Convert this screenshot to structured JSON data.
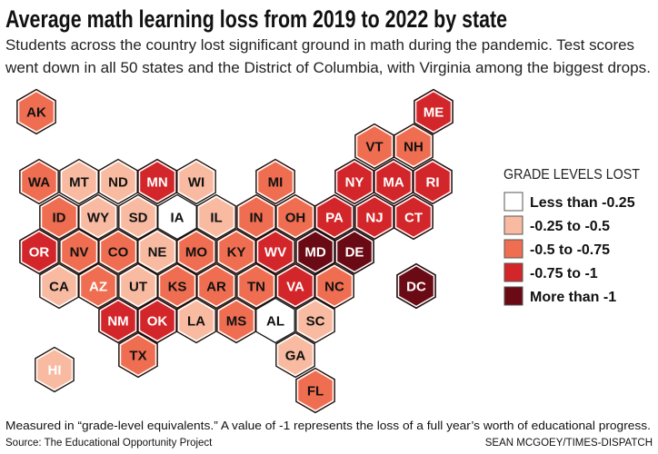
{
  "title": "Average math learning loss from 2019 to 2022 by state",
  "subtitle": [
    "Students across the country lost significant ground in math during the pandemic. Test scores",
    "went down in all 50 states and the District of Columbia, with Virginia among the biggest drops."
  ],
  "legend": {
    "heading": "GRADE LEVELS LOST",
    "categories": [
      {
        "label": "Less than -0.25",
        "color": "#ffffff"
      },
      {
        "label": "-0.25 to -0.5",
        "color": "#f8bba2"
      },
      {
        "label": "-0.5 to -0.75",
        "color": "#ef6e51"
      },
      {
        "label": "-0.75 to -1",
        "color": "#d3262a"
      },
      {
        "label": "More than -1",
        "color": "#6a0a14"
      }
    ]
  },
  "states": [
    {
      "abbr": "AK",
      "category": 2
    },
    {
      "abbr": "ME",
      "category": 3
    },
    {
      "abbr": "VT",
      "category": 2
    },
    {
      "abbr": "NH",
      "category": 2
    },
    {
      "abbr": "WA",
      "category": 2
    },
    {
      "abbr": "MT",
      "category": 1
    },
    {
      "abbr": "ND",
      "category": 1
    },
    {
      "abbr": "MN",
      "category": 3
    },
    {
      "abbr": "WI",
      "category": 1
    },
    {
      "abbr": "MI",
      "category": 2
    },
    {
      "abbr": "NY",
      "category": 3
    },
    {
      "abbr": "MA",
      "category": 3
    },
    {
      "abbr": "RI",
      "category": 3
    },
    {
      "abbr": "ID",
      "category": 2
    },
    {
      "abbr": "WY",
      "category": 1
    },
    {
      "abbr": "SD",
      "category": 1
    },
    {
      "abbr": "IA",
      "category": 0
    },
    {
      "abbr": "IL",
      "category": 1
    },
    {
      "abbr": "IN",
      "category": 2
    },
    {
      "abbr": "OH",
      "category": 2
    },
    {
      "abbr": "PA",
      "category": 3
    },
    {
      "abbr": "NJ",
      "category": 3
    },
    {
      "abbr": "CT",
      "category": 3
    },
    {
      "abbr": "OR",
      "category": 3
    },
    {
      "abbr": "NV",
      "category": 2
    },
    {
      "abbr": "CO",
      "category": 2
    },
    {
      "abbr": "NE",
      "category": 1
    },
    {
      "abbr": "MO",
      "category": 2
    },
    {
      "abbr": "KY",
      "category": 2
    },
    {
      "abbr": "WV",
      "category": 3
    },
    {
      "abbr": "MD",
      "category": 4
    },
    {
      "abbr": "DE",
      "category": 4
    },
    {
      "abbr": "CA",
      "category": 1
    },
    {
      "abbr": "AZ",
      "category": 2
    },
    {
      "abbr": "UT",
      "category": 1
    },
    {
      "abbr": "KS",
      "category": 2
    },
    {
      "abbr": "AR",
      "category": 2
    },
    {
      "abbr": "TN",
      "category": 2
    },
    {
      "abbr": "VA",
      "category": 3
    },
    {
      "abbr": "NC",
      "category": 2
    },
    {
      "abbr": "DC",
      "category": 4
    },
    {
      "abbr": "NM",
      "category": 3
    },
    {
      "abbr": "OK",
      "category": 3
    },
    {
      "abbr": "LA",
      "category": 1
    },
    {
      "abbr": "MS",
      "category": 2
    },
    {
      "abbr": "AL",
      "category": 0
    },
    {
      "abbr": "SC",
      "category": 1
    },
    {
      "abbr": "TX",
      "category": 2
    },
    {
      "abbr": "GA",
      "category": 1
    },
    {
      "abbr": "HI",
      "category": 1
    },
    {
      "abbr": "FL",
      "category": 2
    }
  ],
  "footnote": "Measured in “grade-level equivalents.” A value of -1 represents the loss of a full year’s worth of educational progress.",
  "source": "Source: The Educational Opportunity Project",
  "credit": "SEAN MCGOEY/TIMES-DISPATCH"
}
